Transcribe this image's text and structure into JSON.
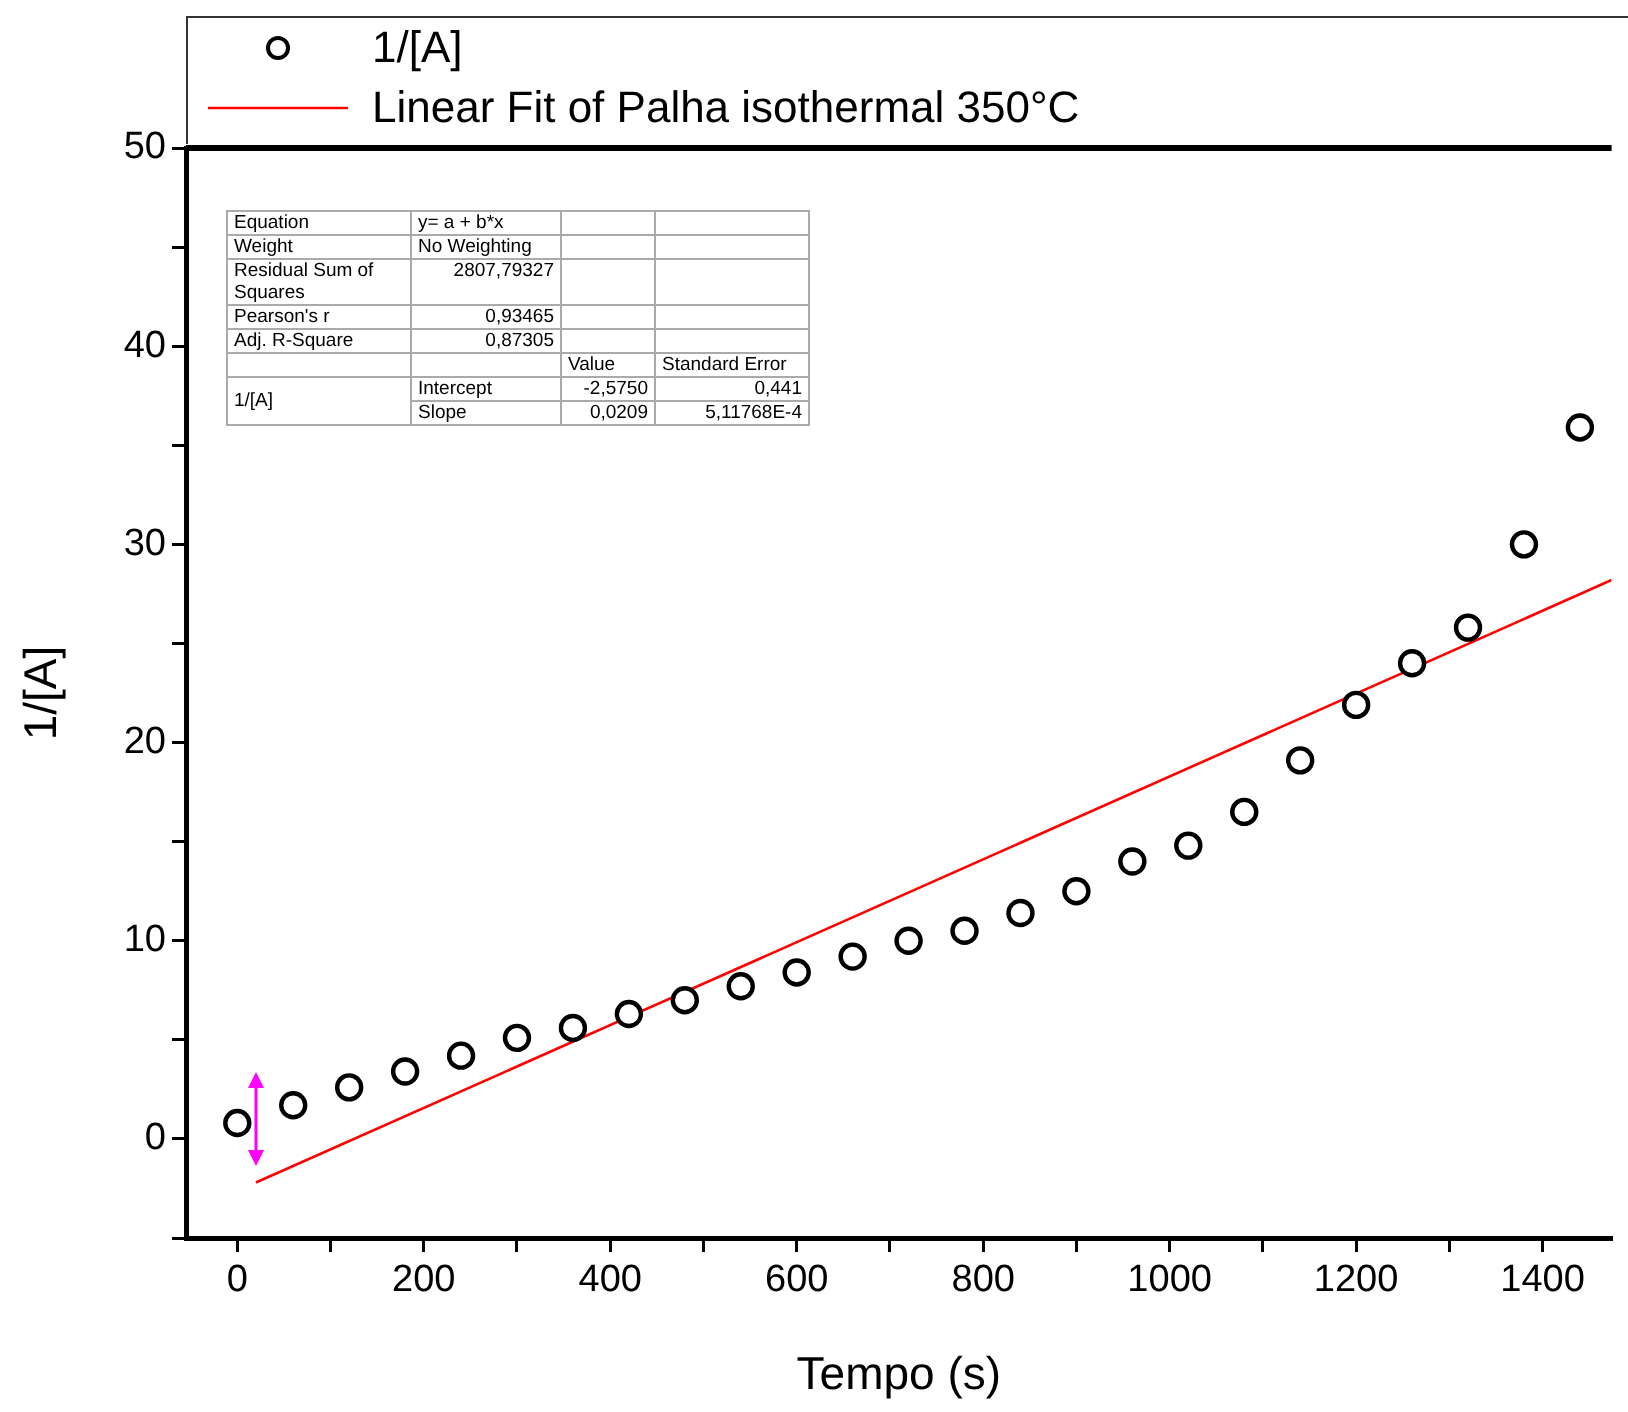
{
  "chart_data": {
    "type": "scatter",
    "xlabel": "Tempo (s)",
    "ylabel": "1/[A]",
    "x": [
      0,
      60,
      120,
      180,
      240,
      300,
      360,
      420,
      480,
      540,
      600,
      660,
      720,
      780,
      840,
      900,
      960,
      1020,
      1080,
      1140,
      1200,
      1260,
      1320,
      1380,
      1440
    ],
    "series": [
      {
        "name": "1/[A]",
        "color": "#000000",
        "marker": "circle",
        "values": [
          0.8,
          1.7,
          2.6,
          3.4,
          4.2,
          5.1,
          5.6,
          6.3,
          7.0,
          7.7,
          8.4,
          9.2,
          10.0,
          10.5,
          11.4,
          12.5,
          14.0,
          14.8,
          16.5,
          19.1,
          21.9,
          24.0,
          25.8,
          30.0,
          35.9
        ]
      },
      {
        "name": "Linear Fit of Palha isothermal 350°C",
        "type": "line",
        "color": "#ff0000",
        "marker": "none",
        "line_style": "solid",
        "x": [
          20,
          1474
        ],
        "values": [
          -2.2,
          28.2
        ]
      }
    ],
    "xlim": [
      -55,
      1474
    ],
    "ylim": [
      -5,
      50
    ],
    "xticks": [
      0,
      {
        "value": 100,
        "label": null
      },
      200,
      {
        "value": 300,
        "label": null
      },
      400,
      {
        "value": 500,
        "label": null
      },
      600,
      {
        "value": 700,
        "label": null
      },
      800,
      {
        "value": 900,
        "label": null
      },
      1000,
      {
        "value": 1100,
        "label": null
      },
      1200,
      {
        "value": 1300,
        "label": null
      },
      1400
    ],
    "yticks": [
      {
        "value": -5,
        "label": null
      },
      0,
      {
        "value": 5,
        "label": null
      },
      10,
      {
        "value": 15,
        "label": null
      },
      20,
      {
        "value": 25,
        "label": null
      },
      30,
      {
        "value": 35,
        "label": null
      },
      40,
      {
        "value": 45,
        "label": null
      },
      50
    ],
    "grid": false,
    "legend": "top",
    "annotations": [
      "Equation",
      "y= a + b*x",
      "Weight",
      "No Weighting",
      "Residual Sum of Squares",
      "2807,79327",
      "Pearson's r",
      "0,93465",
      "Adj. R-Square",
      "0,87305",
      "Value",
      "Standard Error",
      "1/[A]",
      "Intercept",
      "-2,5750",
      "0,441",
      "Slope",
      "0,0209",
      "5,11768E-4"
    ]
  }
}
